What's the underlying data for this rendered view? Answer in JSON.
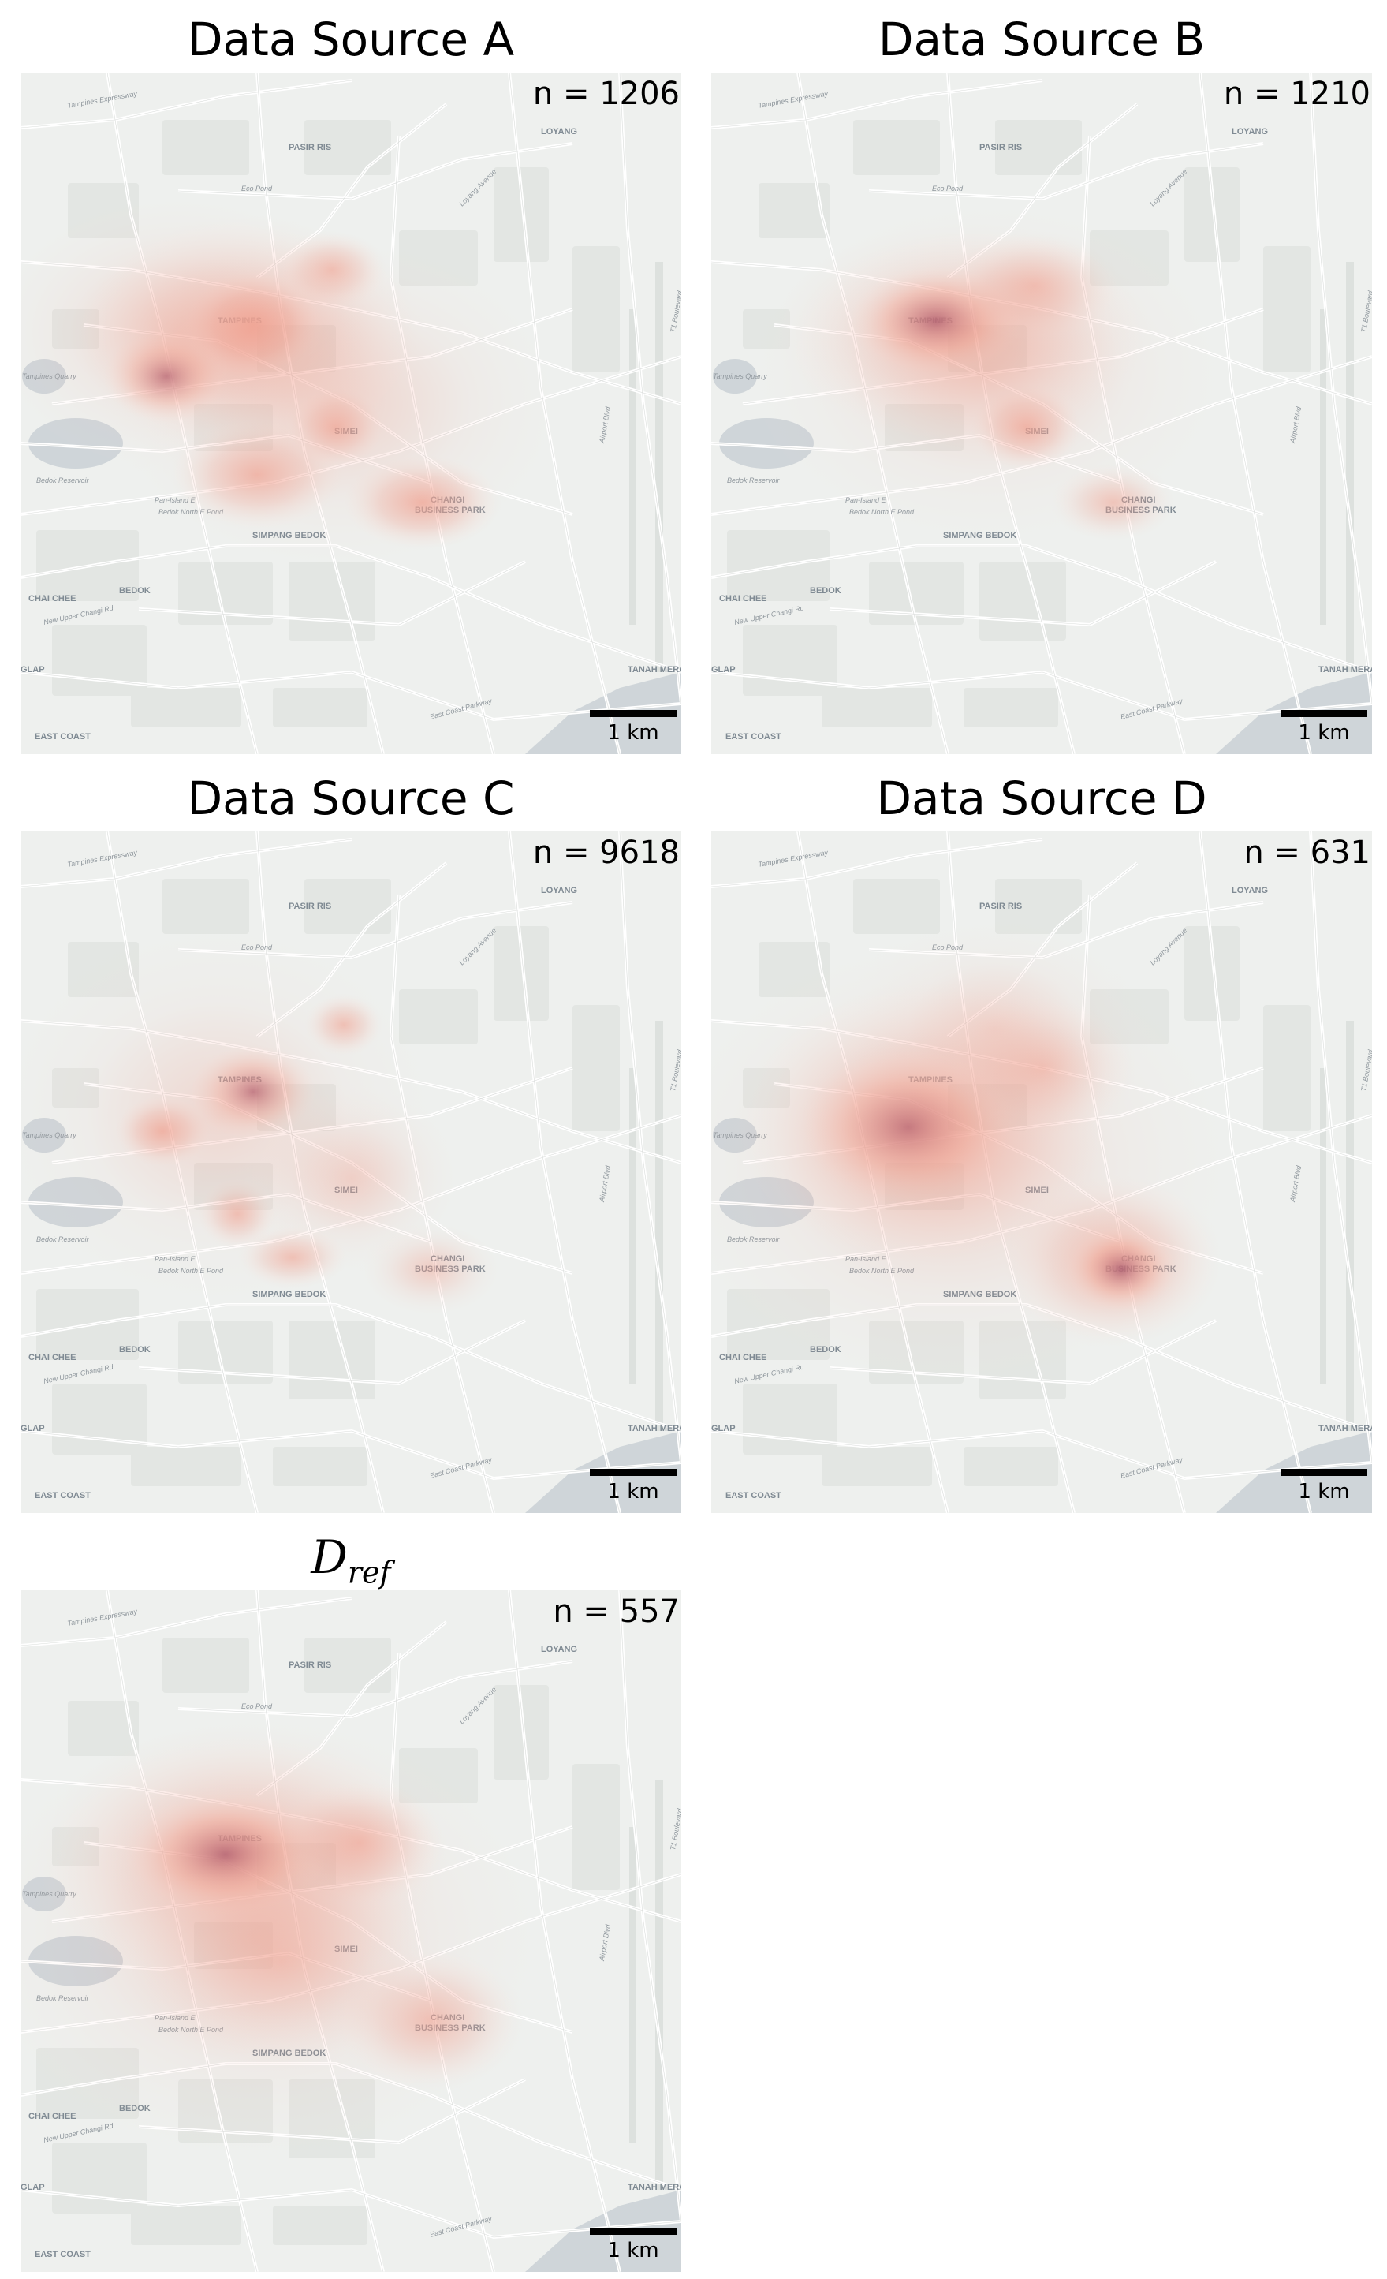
{
  "panels": [
    {
      "title": "Data Source A",
      "count": "n = 1206",
      "scale": "1 km"
    },
    {
      "title": "Data Source B",
      "count": "n = 1210",
      "scale": "1 km"
    },
    {
      "title": "Data Source C",
      "count": "n = 9618",
      "scale": "1 km"
    },
    {
      "title": "Data Source D",
      "count": "n = 631",
      "scale": "1 km"
    },
    {
      "title_base": "D",
      "title_sub": "ref",
      "count": "n = 557",
      "scale": "1 km"
    }
  ],
  "map_labels": {
    "pasir_ris": "PASIR RIS",
    "loyang": "LOYANG",
    "tampines": "TAMPINES",
    "simei": "SIMEI",
    "changi_bp_1": "CHANGI",
    "changi_bp_2": "BUSINESS PARK",
    "simpang_bedok": "SIMPANG BEDOK",
    "chai_chee": "CHAI CHEE",
    "bedok": "BEDOK",
    "east_coast": "EAST COAST",
    "tanah_merah": "TANAH MERAH",
    "glap": "GLAP",
    "eco_pond": "Eco Pond",
    "bedok_reservoir": "Bedok Reservoir",
    "tampines_quarry": "Tampines Quarry",
    "pan_island": "Pan-Island E",
    "bedok_north_pond": "Bedok North E Pond",
    "ecp": "East Coast Parkway",
    "upper_changi": "New Upper Changi Rd",
    "tampines_expressway": "Tampines Expressway",
    "airport_blvd": "Airport Blvd",
    "t1_boulevard": "T1 Boulevard",
    "loyang_avenue": "Loyang Avenue"
  },
  "colors": {
    "kde_light": "#fbe3d9",
    "kde_mid": "#f0a08f",
    "kde_dark": "#a8566b",
    "water": "#cfd5d9",
    "land": "#eef0ee",
    "road": "#ffffff"
  }
}
